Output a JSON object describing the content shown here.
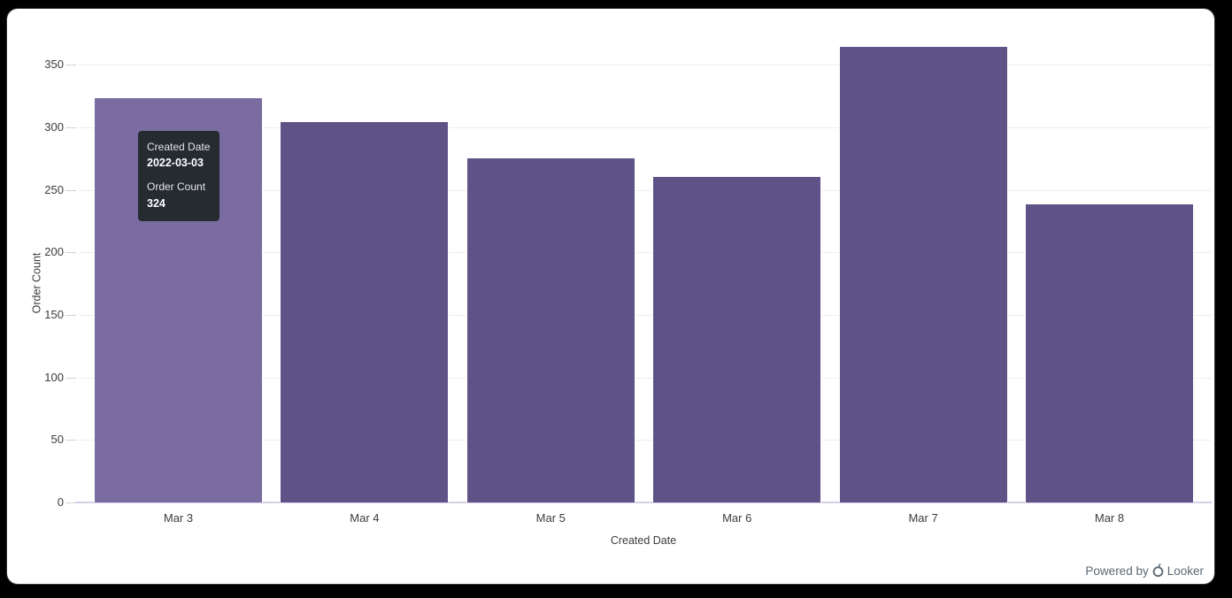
{
  "frame": {
    "background": "#000000",
    "card_background": "#ffffff"
  },
  "chart_data": {
    "type": "bar",
    "title": "",
    "categories": [
      "Mar 3",
      "Mar 4",
      "Mar 5",
      "Mar 6",
      "Mar 7",
      "Mar 8"
    ],
    "values": [
      324,
      305,
      276,
      261,
      365,
      239
    ],
    "xlabel": "Created Date",
    "ylabel": "Order Count",
    "ylim": [
      0,
      395
    ],
    "yticks": [
      0,
      50,
      100,
      150,
      200,
      250,
      300,
      350
    ],
    "grid": "horizontal-only",
    "legend": "none",
    "bar_color": "#5f5286",
    "bar_hover_color": "#7a6ca1",
    "hovered_index": 0
  },
  "tooltip": {
    "dimension_label": "Created Date",
    "dimension_value": "2022-03-03",
    "measure_label": "Order Count",
    "measure_value": "324",
    "background": "#262b32"
  },
  "attribution": {
    "prefix": "Powered by",
    "brand": "Looker"
  }
}
